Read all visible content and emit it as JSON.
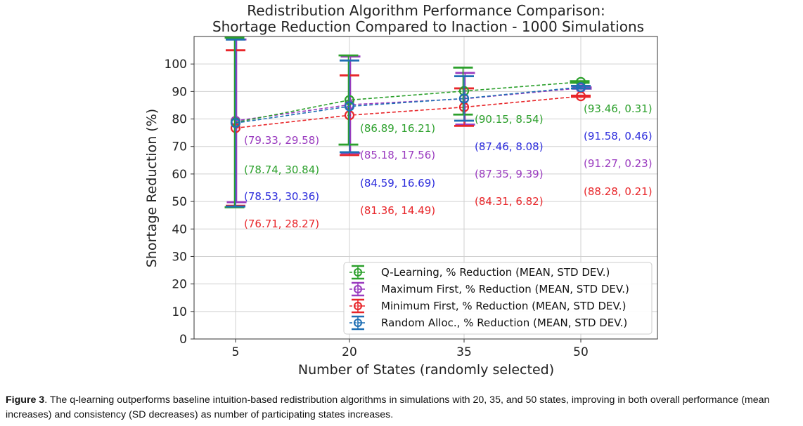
{
  "chart_data": {
    "type": "line",
    "title_lines": [
      "Redistribution Algorithm Performance Comparison:",
      "Shortage Reduction Compared to Inaction - 1000 Simulations"
    ],
    "xlabel": "Number of States (randomly selected)",
    "ylabel": "Shortage Reduction (%)",
    "x": [
      5,
      20,
      35,
      50
    ],
    "x_tick_labels": [
      "5",
      "20",
      "35",
      "50"
    ],
    "ylim": [
      0,
      110
    ],
    "y_ticks": [
      0,
      10,
      20,
      30,
      40,
      50,
      60,
      70,
      80,
      90,
      100
    ],
    "grid": true,
    "legend_position": "lower-right",
    "series": [
      {
        "name": "Q-Learning, % Reduction (MEAN, STD DEV.)",
        "color": "#2ca02c",
        "mean": [
          78.74,
          86.89,
          90.15,
          93.46
        ],
        "sd": [
          30.84,
          16.21,
          8.54,
          0.31
        ],
        "labels": [
          "(78.74, 30.84)",
          "(86.89, 16.21)",
          "(90.15, 8.54)",
          "(93.46, 0.31)"
        ]
      },
      {
        "name": "Maximum First, % Reduction (MEAN, STD DEV.)",
        "color": "#9a3bbf",
        "mean": [
          79.33,
          85.18,
          87.35,
          91.27
        ],
        "sd": [
          29.58,
          17.56,
          9.39,
          0.23
        ],
        "labels": [
          "(79.33, 29.58)",
          "(85.18, 17.56)",
          "(87.35, 9.39)",
          "(91.27, 0.23)"
        ]
      },
      {
        "name": "Minimum First, % Reduction (MEAN, STD DEV.)",
        "color": "#e8262a",
        "mean": [
          76.71,
          81.36,
          84.31,
          88.28
        ],
        "sd": [
          28.27,
          14.49,
          6.82,
          0.21
        ],
        "labels": [
          "(76.71, 28.27)",
          "(81.36, 14.49)",
          "(84.31, 6.82)",
          "(88.28, 0.21)"
        ]
      },
      {
        "name": "Random Alloc., % Reduction (MEAN, STD DEV.)",
        "color": "#1f6fb4",
        "label_color": "#2b2bdc",
        "mean": [
          78.53,
          84.59,
          87.46,
          91.58
        ],
        "sd": [
          30.36,
          16.69,
          8.08,
          0.46
        ],
        "labels": [
          "(78.53, 30.36)",
          "(84.59, 16.69)",
          "(87.46, 8.08)",
          "(91.58, 0.46)"
        ]
      }
    ]
  },
  "caption": {
    "label": "Figure 3",
    "text": ". The q-learning outperforms baseline intuition-based redistribution algorithms in simulations with 20, 35, and 50 states, improving in both overall performance (mean increases) and consistency (SD decreases) as number of participating states increases."
  }
}
